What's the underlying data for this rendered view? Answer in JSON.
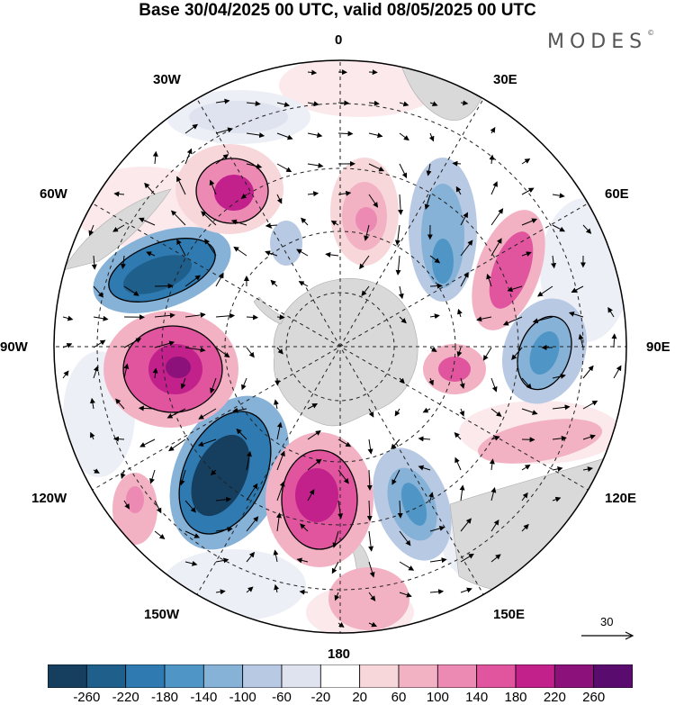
{
  "title": "Base 30/04/2025 00 UTC, valid 08/05/2025 00 UTC",
  "brand": {
    "name": "MODES",
    "mark": "©"
  },
  "longitude_labels": [
    {
      "id": "lon-0",
      "text": "0"
    },
    {
      "id": "lon-30e",
      "text": "30E"
    },
    {
      "id": "lon-60e",
      "text": "60E"
    },
    {
      "id": "lon-90e",
      "text": "90E"
    },
    {
      "id": "lon-120e",
      "text": "120E"
    },
    {
      "id": "lon-150e",
      "text": "150E"
    },
    {
      "id": "lon-180",
      "text": "180"
    },
    {
      "id": "lon-150w",
      "text": "150W"
    },
    {
      "id": "lon-120w",
      "text": "120W"
    },
    {
      "id": "lon-90w",
      "text": "90W"
    },
    {
      "id": "lon-60w",
      "text": "60W"
    },
    {
      "id": "lon-30w",
      "text": "30W"
    }
  ],
  "reference_vector": {
    "value": "30"
  },
  "colorbar": {
    "ticks": [
      "-260",
      "-220",
      "-180",
      "-140",
      "-100",
      "-60",
      "-20",
      "20",
      "60",
      "100",
      "140",
      "180",
      "220",
      "260"
    ],
    "colors": [
      "#163e5e",
      "#1f5f8b",
      "#2f7bb1",
      "#4f96c6",
      "#86b2d8",
      "#b7c9e3",
      "#dfe2ef",
      "#ffffff",
      "#f7d7da",
      "#f3b2c4",
      "#ec8ab3",
      "#e0559e",
      "#c2218c",
      "#8d117a",
      "#5a0b6e"
    ]
  },
  "colors": {
    "land": "#d9d9d9",
    "grid": "#222222",
    "background": "#ffffff"
  }
}
